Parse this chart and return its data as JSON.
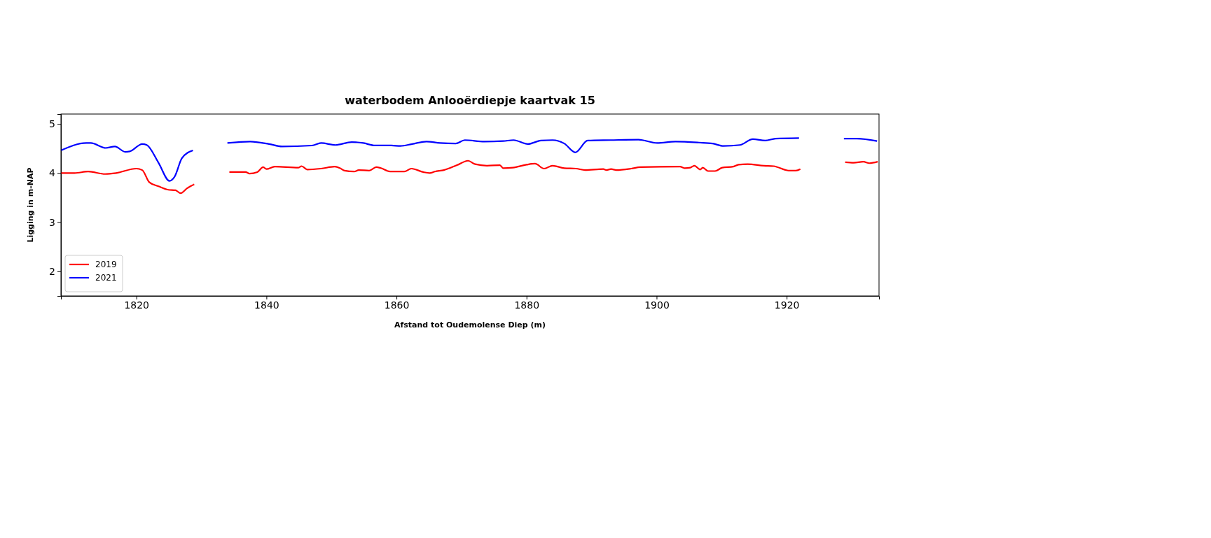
{
  "chart_data": {
    "type": "line",
    "title": "waterbodem Anlooërdiepje kaartvak 15",
    "xlabel": "Afstand tot Oudemolense Diep (m)",
    "ylabel": "Ligging in m-NAP",
    "xlim": [
      1808.4,
      1934.2
    ],
    "ylim": [
      1.5,
      5.2
    ],
    "xticks": [
      1820,
      1840,
      1860,
      1880,
      1900,
      1920
    ],
    "yticks": [
      2,
      3,
      4,
      5
    ],
    "grid": false,
    "legend": "bottom left",
    "line_style": "solid",
    "marker": "none",
    "series": [
      {
        "name": "2019",
        "color": "#ff0000",
        "x": [
          1808.4,
          1810.5,
          1812.6,
          1815.2,
          1816.9,
          1820.0,
          1820.9,
          1822.0,
          1823.4,
          1824.9,
          1826.0,
          1826.8,
          1827.8,
          1828.9,
          1831.5,
          1834.3,
          1836.8,
          1837.4,
          1838.6,
          1839.5,
          1840.0,
          1841.3,
          1844.9,
          1845.4,
          1846.3,
          1848.4,
          1850.5,
          1851.3,
          1852.0,
          1853.5,
          1854.2,
          1855.8,
          1856.9,
          1857.6,
          1859.0,
          1861.2,
          1862.3,
          1864.1,
          1865.1,
          1865.9,
          1867.3,
          1869.3,
          1871.0,
          1872.1,
          1873.9,
          1875.9,
          1876.4,
          1877.9,
          1880.0,
          1881.3,
          1882.7,
          1884.0,
          1885.8,
          1887.6,
          1889.0,
          1891.8,
          1892.3,
          1893.0,
          1893.8,
          1896.1,
          1897.5,
          1903.6,
          1904.3,
          1905.2,
          1905.8,
          1906.7,
          1907.1,
          1907.9,
          1909.0,
          1910.1,
          1911.8,
          1912.6,
          1914.0,
          1916.5,
          1918.0,
          1920.3,
          1921.4,
          1922.1,
          1925.5,
          1929.0,
          1930.3,
          1931.8,
          1932.7,
          1934.0
        ],
        "values": [
          4.0,
          4.0,
          4.03,
          3.98,
          4.0,
          4.09,
          4.06,
          3.81,
          3.73,
          3.66,
          3.65,
          3.59,
          3.69,
          3.77,
          null,
          4.02,
          4.02,
          3.99,
          4.02,
          4.12,
          4.08,
          4.13,
          4.11,
          4.14,
          4.07,
          4.09,
          4.13,
          4.1,
          4.05,
          4.03,
          4.06,
          4.05,
          4.12,
          4.1,
          4.03,
          4.03,
          4.09,
          4.02,
          4.0,
          4.03,
          4.06,
          4.16,
          4.25,
          4.18,
          4.15,
          4.16,
          4.1,
          4.11,
          4.17,
          4.19,
          4.09,
          4.15,
          4.1,
          4.09,
          4.06,
          4.08,
          4.06,
          4.08,
          4.06,
          4.09,
          4.12,
          4.13,
          4.1,
          4.11,
          4.15,
          4.07,
          4.11,
          4.04,
          4.04,
          4.11,
          4.13,
          4.17,
          4.18,
          4.15,
          4.14,
          4.05,
          4.05,
          4.08,
          null,
          4.22,
          4.21,
          4.23,
          4.2,
          4.23
        ]
      },
      {
        "name": "2021",
        "color": "#0000ff",
        "x": [
          1808.4,
          1812.3,
          1813.0,
          1815.3,
          1816.7,
          1818.3,
          1819.0,
          1820.9,
          1821.6,
          1823.4,
          1825.1,
          1825.9,
          1827.0,
          1828.7,
          1831.5,
          1834.0,
          1837.5,
          1840.4,
          1842.4,
          1847.0,
          1848.4,
          1850.6,
          1853.1,
          1854.9,
          1856.7,
          1859.2,
          1860.6,
          1862.4,
          1864.6,
          1866.7,
          1869.1,
          1870.5,
          1873.5,
          1876.4,
          1878.0,
          1880.2,
          1882.2,
          1884.0,
          1885.8,
          1887.5,
          1889.4,
          1892.9,
          1897.2,
          1900.1,
          1902.9,
          1906.5,
          1908.6,
          1910.3,
          1912.8,
          1914.8,
          1916.7,
          1918.3,
          1921.9,
          1925.5,
          1928.8,
          1930.8,
          1933.9
        ],
        "values": [
          4.46,
          4.61,
          4.61,
          4.51,
          4.54,
          4.43,
          4.44,
          4.59,
          4.57,
          4.21,
          3.84,
          3.93,
          4.3,
          4.46,
          null,
          4.61,
          4.64,
          4.59,
          4.54,
          4.56,
          4.61,
          4.57,
          4.63,
          4.61,
          4.56,
          4.56,
          4.55,
          4.59,
          4.64,
          4.61,
          4.6,
          4.67,
          4.64,
          4.65,
          4.67,
          4.59,
          4.66,
          4.67,
          4.6,
          4.42,
          4.66,
          4.67,
          4.68,
          4.61,
          4.64,
          4.62,
          4.6,
          4.55,
          4.57,
          4.69,
          4.66,
          4.7,
          4.71,
          null,
          4.7,
          4.7,
          4.65
        ]
      }
    ]
  }
}
